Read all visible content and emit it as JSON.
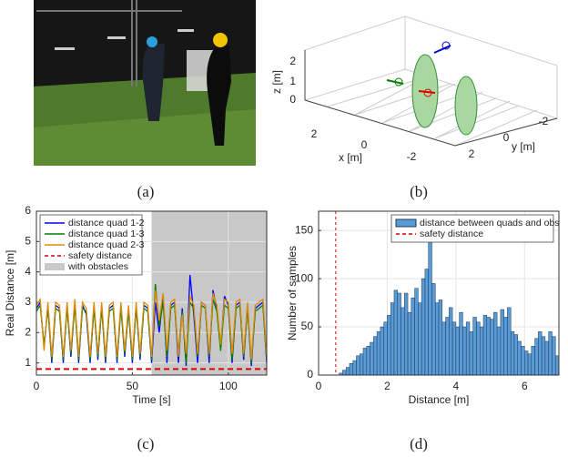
{
  "captions": [
    "(a)",
    "(b)",
    "(c)",
    "(d)"
  ],
  "panel_b": {
    "xlabel": "x [m]",
    "ylabel": "y [m]",
    "zlabel": "z [m]",
    "xticks": [
      2,
      0,
      -2
    ],
    "yticks": [
      -2,
      0,
      2
    ],
    "zticks": [
      0,
      1,
      2
    ]
  },
  "chart_data": [
    {
      "type": "line",
      "xlabel": "Time [s]",
      "ylabel": "Real Distance [m]",
      "x": [
        0,
        2,
        4,
        6,
        8,
        10,
        12,
        14,
        16,
        18,
        20,
        22,
        24,
        26,
        28,
        30,
        32,
        34,
        36,
        38,
        40,
        42,
        44,
        46,
        48,
        50,
        52,
        54,
        56,
        58,
        60,
        62,
        64,
        66,
        68,
        70,
        72,
        74,
        76,
        78,
        80,
        82,
        84,
        86,
        88,
        90,
        92,
        94,
        96,
        98,
        100,
        102,
        104,
        106,
        108,
        110,
        112,
        114,
        116,
        118,
        120
      ],
      "series": [
        {
          "name": "distance quad 1-2",
          "color": "#0000ff",
          "values": [
            2.8,
            3.0,
            1.5,
            2.9,
            1.0,
            2.9,
            2.8,
            1.0,
            2.9,
            1.2,
            3.0,
            1.0,
            2.9,
            2.6,
            1.0,
            2.9,
            1.1,
            2.9,
            1.0,
            2.8,
            2.9,
            1.0,
            2.9,
            1.2,
            2.8,
            1.0,
            2.9,
            1.1,
            2.9,
            2.8,
            1.0,
            3.0,
            2.0,
            3.2,
            1.0,
            2.9,
            3.0,
            1.0,
            2.8,
            0.9,
            3.9,
            2.6,
            1.0,
            3.0,
            2.9,
            1.0,
            3.4,
            2.8,
            1.5,
            3.2,
            2.9,
            1.0,
            2.9,
            3.0,
            1.1,
            2.9,
            0.9,
            2.8,
            2.9,
            3.0,
            1.0
          ]
        },
        {
          "name": "distance quad 1-3",
          "color": "#008000",
          "values": [
            2.7,
            2.9,
            1.6,
            2.8,
            1.1,
            2.8,
            2.7,
            1.1,
            2.8,
            1.3,
            2.9,
            1.1,
            2.8,
            2.7,
            1.1,
            2.8,
            1.2,
            2.8,
            1.1,
            2.7,
            2.8,
            1.1,
            2.8,
            1.3,
            2.7,
            1.1,
            2.8,
            1.2,
            2.8,
            2.7,
            1.1,
            3.6,
            2.2,
            3.0,
            1.2,
            2.8,
            2.9,
            1.3,
            2.7,
            1.0,
            3.0,
            2.8,
            1.2,
            2.9,
            2.8,
            1.2,
            3.1,
            2.7,
            1.4,
            2.9,
            2.8,
            1.1,
            2.8,
            2.9,
            1.2,
            2.8,
            1.0,
            2.7,
            2.8,
            2.9,
            1.1
          ]
        },
        {
          "name": "distance quad 2-3",
          "color": "#e08a00",
          "values": [
            2.9,
            3.1,
            1.4,
            3.0,
            1.2,
            3.0,
            2.9,
            1.2,
            3.0,
            1.4,
            3.1,
            1.2,
            3.0,
            2.8,
            1.2,
            3.0,
            1.3,
            3.0,
            1.2,
            2.9,
            3.0,
            1.2,
            3.0,
            1.4,
            2.9,
            1.2,
            3.0,
            1.3,
            3.0,
            2.9,
            1.2,
            3.4,
            2.4,
            3.3,
            1.4,
            3.0,
            3.1,
            1.2,
            2.6,
            1.3,
            3.2,
            2.9,
            1.3,
            3.0,
            2.9,
            1.3,
            3.3,
            2.9,
            1.6,
            3.1,
            3.0,
            1.3,
            3.0,
            3.1,
            1.3,
            3.0,
            1.1,
            2.9,
            3.0,
            3.1,
            1.2
          ]
        }
      ],
      "safety": {
        "name": "safety distance",
        "value": 0.8,
        "color": "#e00000"
      },
      "shade": {
        "name": "with obstacles",
        "x": [
          60,
          120
        ],
        "color": "#c8c8c8"
      },
      "xlim": [
        0,
        120
      ],
      "ylim": [
        0.6,
        6
      ],
      "xticks": [
        0,
        50,
        100
      ],
      "yticks": [
        1,
        2,
        3,
        4,
        5,
        6
      ],
      "grid": true,
      "legend": "upper left"
    },
    {
      "type": "histogram",
      "xlabel": "Distance [m]",
      "ylabel": "Number of samples",
      "bins": [
        0.6,
        0.7,
        0.8,
        0.9,
        1.0,
        1.1,
        1.2,
        1.3,
        1.4,
        1.5,
        1.6,
        1.7,
        1.8,
        1.9,
        2.0,
        2.1,
        2.2,
        2.3,
        2.4,
        2.5,
        2.6,
        2.7,
        2.8,
        2.9,
        3.0,
        3.1,
        3.2,
        3.3,
        3.4,
        3.5,
        3.6,
        3.7,
        3.8,
        3.9,
        4.0,
        4.1,
        4.2,
        4.3,
        4.4,
        4.5,
        4.6,
        4.7,
        4.8,
        4.9,
        5.0,
        5.1,
        5.2,
        5.3,
        5.4,
        5.5,
        5.6,
        5.7,
        5.8,
        5.9,
        6.0,
        6.1,
        6.2,
        6.3,
        6.4,
        6.5,
        6.6,
        6.7,
        6.8,
        6.9,
        7.0
      ],
      "series": [
        {
          "name": "distance between quads and obs",
          "color": "#5b9bd5",
          "values": [
            2,
            5,
            8,
            12,
            15,
            20,
            22,
            28,
            30,
            34,
            40,
            45,
            50,
            55,
            62,
            75,
            88,
            85,
            70,
            85,
            65,
            80,
            90,
            75,
            100,
            110,
            143,
            95,
            75,
            78,
            55,
            60,
            70,
            55,
            50,
            65,
            50,
            55,
            45,
            60,
            55,
            50,
            62,
            60,
            58,
            65,
            50,
            68,
            60,
            70,
            45,
            42,
            35,
            30,
            25,
            22,
            30,
            38,
            45,
            40,
            35,
            45,
            40,
            20
          ]
        }
      ],
      "safety": {
        "name": "safety distance",
        "value": 0.5,
        "color": "#e00000"
      },
      "xlim": [
        0,
        7
      ],
      "ylim": [
        0,
        170
      ],
      "xticks": [
        0,
        2,
        4,
        6
      ],
      "yticks": [
        0,
        50,
        100,
        150
      ],
      "grid": true,
      "legend": "upper right"
    }
  ]
}
